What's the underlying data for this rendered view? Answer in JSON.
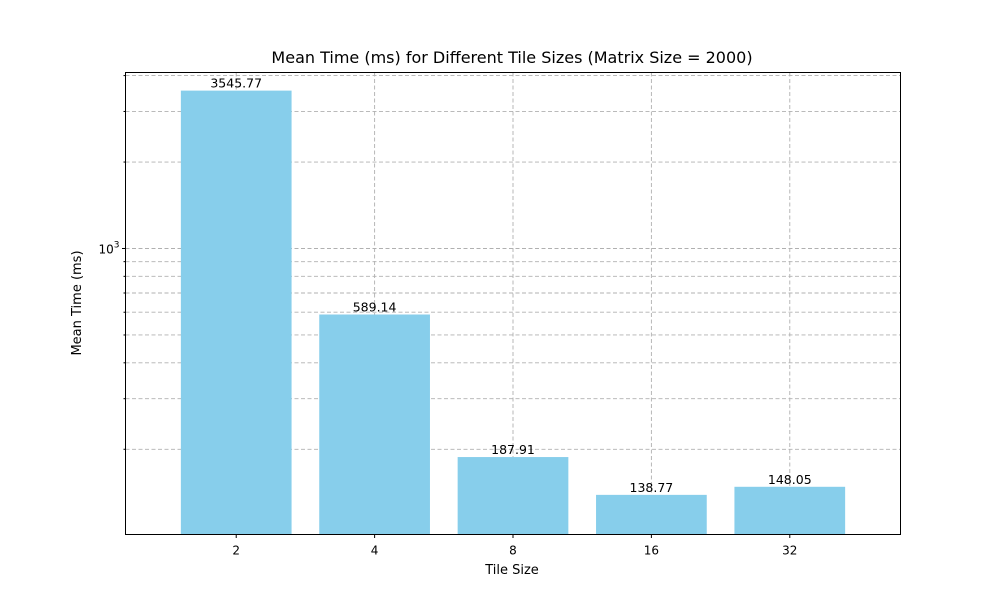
{
  "chart_data": {
    "type": "bar",
    "title": "Mean Time (ms) for Different Tile Sizes (Matrix Size = 2000)",
    "xlabel": "Tile Size",
    "ylabel": "Mean Time (ms)",
    "categories": [
      "2",
      "4",
      "8",
      "16",
      "32"
    ],
    "values": [
      3545.77,
      589.14,
      187.91,
      138.77,
      148.05
    ],
    "value_labels": [
      "3545.77",
      "589.14",
      "187.91",
      "138.77",
      "148.05"
    ],
    "y_scale": "log",
    "ylim": [
      101,
      4100
    ],
    "y_major_tick": {
      "value": 1000,
      "base": "10",
      "exponent": "3"
    },
    "y_minor_ticks": [
      200,
      300,
      400,
      500,
      600,
      700,
      800,
      900,
      2000,
      3000,
      4000
    ],
    "grid": true,
    "bar_color": "#87ceeb"
  }
}
